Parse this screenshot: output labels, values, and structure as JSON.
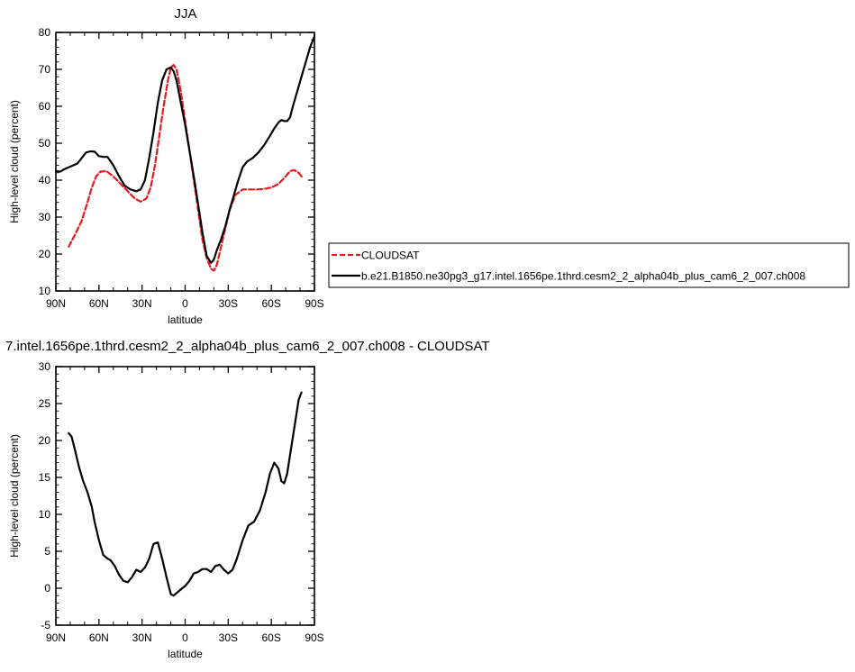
{
  "chart_data": [
    {
      "type": "line",
      "title": "JJA",
      "xlabel": "latitude",
      "ylabel": "High-level cloud (percent)",
      "xlim": [
        90,
        -90
      ],
      "ylim": [
        10,
        80
      ],
      "xticks": [
        90,
        60,
        30,
        0,
        -30,
        -60,
        -90
      ],
      "xtick_labels": [
        "90N",
        "60N",
        "30N",
        "0",
        "30S",
        "60S",
        "90S"
      ],
      "yticks": [
        10,
        20,
        30,
        40,
        50,
        60,
        70,
        80
      ],
      "ytick_labels": [
        "10",
        "20",
        "30",
        "40",
        "50",
        "60",
        "70",
        "80"
      ],
      "grid": false,
      "legend_position": "right",
      "series": [
        {
          "name": "CLOUDSAT",
          "color": "#e8191c",
          "dash": "dashed",
          "x": [
            81,
            77,
            72,
            68,
            65,
            62,
            59,
            55,
            50,
            45,
            40,
            35,
            31,
            27,
            24,
            21,
            18,
            15,
            12,
            10,
            8,
            6,
            3,
            0,
            -3,
            -6,
            -9,
            -12,
            -15,
            -18,
            -20,
            -22,
            -25,
            -28,
            -31,
            -35,
            -40,
            -45,
            -50,
            -55,
            -60,
            -65,
            -70,
            -73,
            -76,
            -79,
            -82
          ],
          "y": [
            22,
            25,
            29,
            34,
            38,
            41,
            42.3,
            42.5,
            41,
            39,
            37,
            35,
            34.2,
            35,
            38,
            44,
            52,
            60,
            67,
            70.5,
            71.2,
            70,
            64,
            56,
            48,
            40,
            32,
            24,
            19,
            16,
            15.5,
            17,
            22,
            27,
            32,
            36,
            37.5,
            37.5,
            37.5,
            37.6,
            38,
            39,
            41,
            42.5,
            42.7,
            42,
            40.5
          ]
        },
        {
          "name": "b.e21.B1850.ne30pg3_g17.intel.1656pe.1thrd.cesm2_2_alpha04b_plus_cam6_2_007.ch008",
          "color": "#000000",
          "dash": "solid",
          "x": [
            90,
            87,
            84,
            81,
            78,
            75,
            72,
            69,
            66,
            63,
            60,
            57,
            54,
            50,
            46,
            42,
            38,
            34,
            31,
            28,
            25,
            22,
            19,
            16,
            13,
            10,
            8,
            6,
            3,
            0,
            -3,
            -6,
            -9,
            -12,
            -15,
            -18,
            -20,
            -22,
            -25,
            -28,
            -31,
            -34,
            -37,
            -40,
            -43,
            -47,
            -51,
            -55,
            -59,
            -62,
            -65,
            -67,
            -69,
            -71,
            -73,
            -75,
            -78,
            -81,
            -84,
            -87,
            -90
          ],
          "y": [
            42.5,
            42.3,
            43,
            43.5,
            44,
            44.5,
            46,
            47.5,
            47.8,
            47.7,
            46.5,
            46.3,
            46.3,
            44,
            41,
            38.5,
            37.5,
            37,
            37.5,
            40,
            46,
            53,
            61,
            67,
            70,
            70.5,
            69.5,
            67,
            61,
            55,
            48,
            41,
            33.5,
            26,
            19.5,
            17.6,
            18.5,
            21,
            24,
            27.5,
            32,
            36,
            40,
            43.5,
            45,
            46,
            47.5,
            49.5,
            52,
            54,
            55.6,
            56.3,
            56,
            56,
            57,
            60,
            64,
            68,
            72,
            76,
            79
          ]
        }
      ]
    },
    {
      "type": "line",
      "title": "7.intel.1656pe.1thrd.cesm2_2_alpha04b_plus_cam6_2_007.ch008 - CLOUDSAT",
      "xlabel": "latitude",
      "ylabel": "High-level cloud (percent)",
      "xlim": [
        90,
        -90
      ],
      "ylim": [
        -5,
        30
      ],
      "xticks": [
        90,
        60,
        30,
        0,
        -30,
        -60,
        -90
      ],
      "xtick_labels": [
        "90N",
        "60N",
        "30N",
        "0",
        "30S",
        "60S",
        "90S"
      ],
      "yticks": [
        -5,
        0,
        5,
        10,
        15,
        20,
        25,
        30
      ],
      "ytick_labels": [
        "-5",
        "0",
        "5",
        "10",
        "15",
        "20",
        "25",
        "30"
      ],
      "grid": false,
      "series": [
        {
          "color": "#000000",
          "dash": "solid",
          "x": [
            81,
            79,
            77,
            74,
            71,
            68,
            65,
            63,
            60,
            57,
            54,
            52,
            49,
            46,
            43,
            40,
            37,
            34,
            31,
            28,
            25,
            22,
            19,
            16,
            13,
            10,
            8,
            5,
            2,
            0,
            -3,
            -6,
            -9,
            -12,
            -15,
            -18,
            -21,
            -24,
            -27,
            -30,
            -33,
            -36,
            -40,
            -44,
            -48,
            -52,
            -56,
            -59,
            -62,
            -65,
            -67,
            -69,
            -71,
            -73,
            -75,
            -77,
            -79,
            -81
          ],
          "y": [
            21,
            20.5,
            19,
            16.5,
            14.5,
            13,
            11,
            9,
            6.5,
            4.5,
            4,
            3.8,
            3,
            1.8,
            1,
            0.8,
            1.5,
            2.5,
            2.2,
            2.8,
            4,
            6,
            6.2,
            4,
            1.5,
            -0.8,
            -1,
            -0.5,
            0,
            0.3,
            1,
            2,
            2.2,
            2.6,
            2.6,
            2.2,
            3,
            3.2,
            2.5,
            2,
            2.5,
            4,
            6.5,
            8.5,
            9,
            10.5,
            13,
            15.5,
            17,
            16.2,
            14.5,
            14.2,
            15.5,
            18,
            20.5,
            23,
            25.5,
            26.5
          ]
        }
      ]
    }
  ]
}
